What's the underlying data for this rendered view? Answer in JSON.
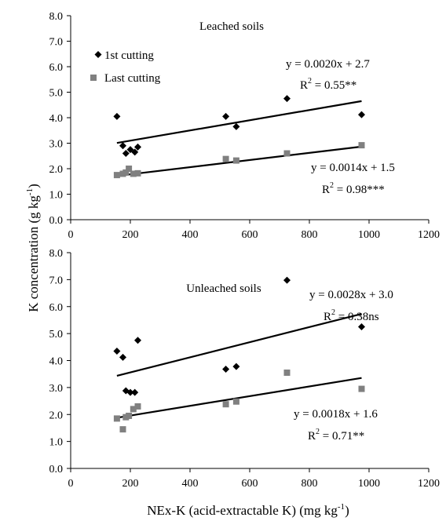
{
  "chart_data": [
    {
      "type": "scatter",
      "title": "Leached soils",
      "xlim": [
        0,
        1200
      ],
      "ylim": [
        0,
        8
      ],
      "xticks": [
        "0",
        "200",
        "400",
        "600",
        "800",
        "1000",
        "1200"
      ],
      "yticks": [
        "0.0",
        "1.0",
        "2.0",
        "3.0",
        "4.0",
        "5.0",
        "6.0",
        "7.0",
        "8.0"
      ],
      "grid": false,
      "legend_position": "top-left",
      "series": [
        {
          "name": "1st cutting",
          "marker": "diamond",
          "color": "#000000",
          "points": [
            [
              155,
              4.05
            ],
            [
              175,
              2.9
            ],
            [
              185,
              2.6
            ],
            [
              200,
              2.75
            ],
            [
              215,
              2.65
            ],
            [
              225,
              2.85
            ],
            [
              520,
              4.05
            ],
            [
              555,
              3.65
            ],
            [
              725,
              4.75
            ],
            [
              975,
              4.12
            ]
          ],
          "trend": {
            "slope": 0.002,
            "intercept": 2.7
          },
          "equation": "y = 0.0020x + 2.7",
          "r2_prefix": "R",
          "r2_value": " = 0.55**"
        },
        {
          "name": "Last cutting",
          "marker": "square",
          "color": "#808080",
          "points": [
            [
              155,
              1.75
            ],
            [
              175,
              1.8
            ],
            [
              185,
              1.85
            ],
            [
              195,
              2.0
            ],
            [
              210,
              1.8
            ],
            [
              225,
              1.82
            ],
            [
              520,
              2.38
            ],
            [
              555,
              2.32
            ],
            [
              725,
              2.6
            ],
            [
              975,
              2.92
            ]
          ],
          "trend": {
            "slope": 0.0014,
            "intercept": 1.5
          },
          "equation": "y = 0.0014x + 1.5",
          "r2_prefix": "R",
          "r2_value": " = 0.98***"
        }
      ]
    },
    {
      "type": "scatter",
      "title": "Unleached soils",
      "xlim": [
        0,
        1200
      ],
      "ylim": [
        0,
        8
      ],
      "xticks": [
        "0",
        "200",
        "400",
        "600",
        "800",
        "1000",
        "1200"
      ],
      "yticks": [
        "0.0",
        "1.0",
        "2.0",
        "3.0",
        "4.0",
        "5.0",
        "6.0",
        "7.0",
        "8.0"
      ],
      "grid": false,
      "series": [
        {
          "name": "1st cutting",
          "marker": "diamond",
          "color": "#000000",
          "points": [
            [
              155,
              4.35
            ],
            [
              175,
              4.12
            ],
            [
              185,
              2.88
            ],
            [
              200,
              2.82
            ],
            [
              215,
              2.82
            ],
            [
              225,
              4.75
            ],
            [
              520,
              3.68
            ],
            [
              555,
              3.78
            ],
            [
              725,
              6.98
            ],
            [
              975,
              5.25
            ]
          ],
          "trend": {
            "slope": 0.0028,
            "intercept": 3.0
          },
          "equation": "y = 0.0028x + 3.0",
          "r2_prefix": "R",
          "r2_value": " = 0.38ns"
        },
        {
          "name": "Last cutting",
          "marker": "square",
          "color": "#808080",
          "points": [
            [
              155,
              1.85
            ],
            [
              175,
              1.45
            ],
            [
              185,
              1.9
            ],
            [
              195,
              1.95
            ],
            [
              210,
              2.2
            ],
            [
              225,
              2.3
            ],
            [
              520,
              2.38
            ],
            [
              555,
              2.48
            ],
            [
              725,
              3.55
            ],
            [
              975,
              2.95
            ]
          ],
          "trend": {
            "slope": 0.0018,
            "intercept": 1.6
          },
          "equation": "y = 0.0018x + 1.6",
          "r2_prefix": "R",
          "r2_value": " = 0.71**"
        }
      ]
    }
  ],
  "ylabel": {
    "main": "K concentration (g kg",
    "sup": "-1",
    "end": ")"
  },
  "xlabel": {
    "main": "NEx-K (acid-extractable K) (mg kg",
    "sup": "-1",
    "end": ")"
  }
}
